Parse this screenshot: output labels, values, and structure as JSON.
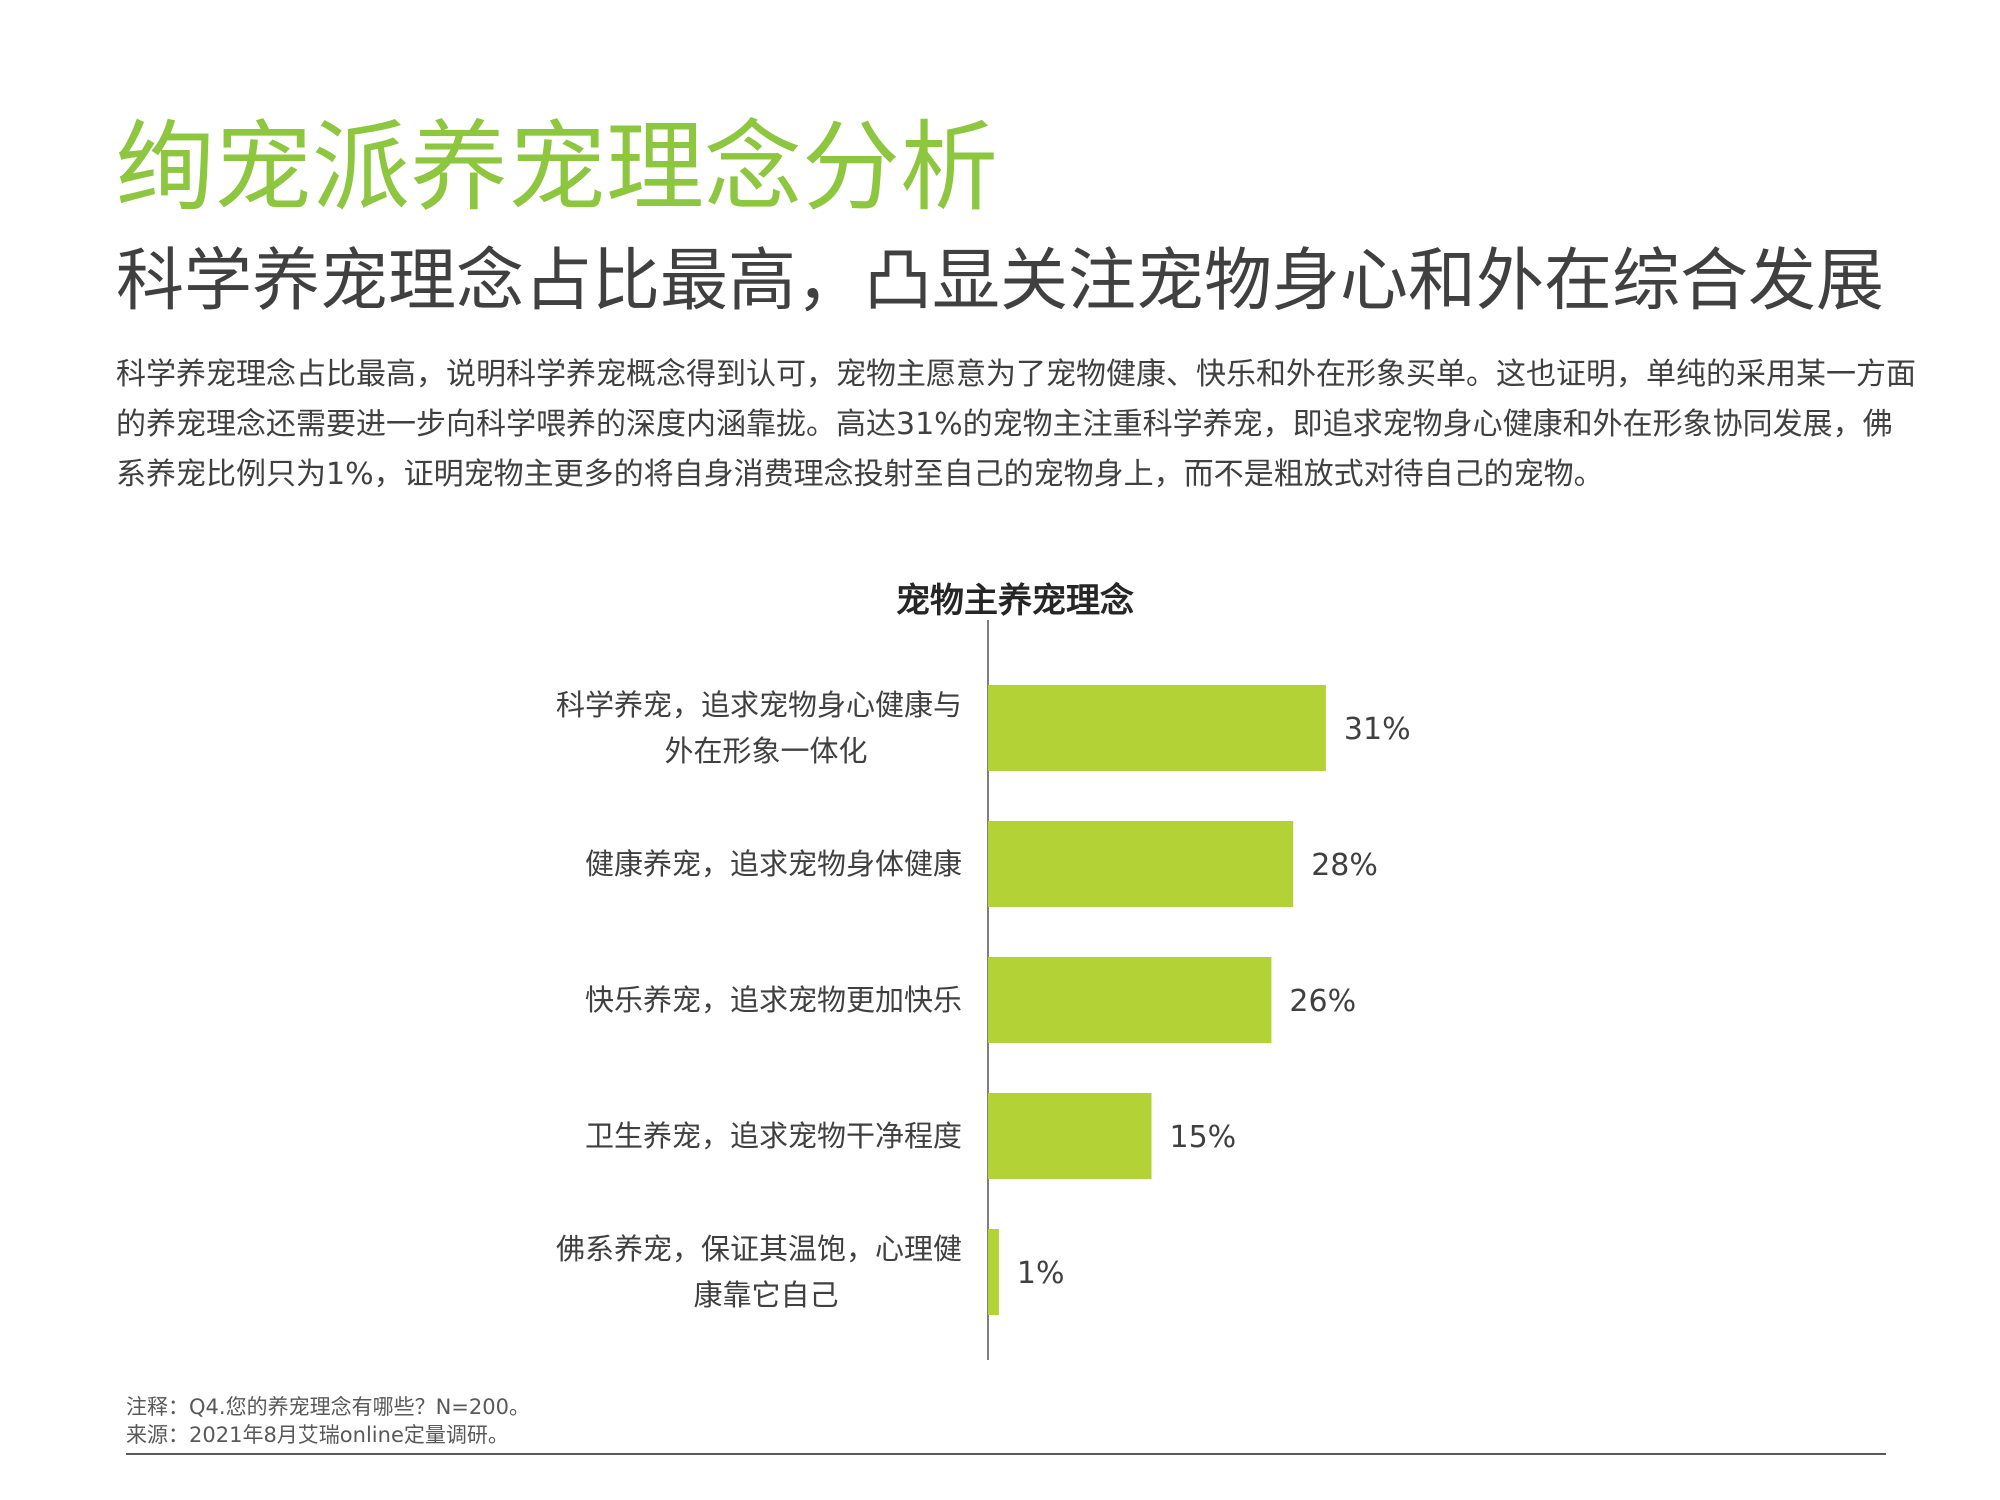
{
  "header": {
    "title": "绚宠派养宠理念分析",
    "subtitle": "科学养宠理念占比最高，凸显关注宠物身心和外在综合发展",
    "description": "科学养宠理念占比最高，说明科学养宠概念得到认可，宠物主愿意为了宠物健康、快乐和外在形象买单。这也证明，单纯的采用某一方面的养宠理念还需要进一步向科学喂养的深度内涵靠拢。高达31%的宠物主注重科学养宠，即追求宠物身心健康和外在形象协同发展，佛系养宠比例只为1%，证明宠物主更多的将自身消费理念投射至自己的宠物身上，而不是粗放式对待自己的宠物。"
  },
  "chart_data": {
    "type": "bar",
    "orientation": "horizontal",
    "title": "宠物主养宠理念",
    "categories": [
      [
        "科学养宠，追求宠物身心健康与",
        "外在形象一体化"
      ],
      [
        "健康养宠，追求宠物身体健康"
      ],
      [
        "快乐养宠，追求宠物更加快乐"
      ],
      [
        "卫生养宠，追求宠物干净程度"
      ],
      [
        "佛系养宠，保证其温饱，心理健",
        "康靠它自己"
      ]
    ],
    "values": [
      31,
      28,
      26,
      15,
      1
    ],
    "value_labels": [
      "31%",
      "28%",
      "26%",
      "15%",
      "1%"
    ],
    "unit": "%",
    "xlim": [
      0,
      100
    ],
    "bar_color": "#b3d235",
    "grid": false,
    "legend": "none"
  },
  "footer": {
    "note": "注释：Q4.您的养宠理念有哪些？N=200。",
    "source": "来源：2021年8月艾瑞online定量调研。"
  }
}
